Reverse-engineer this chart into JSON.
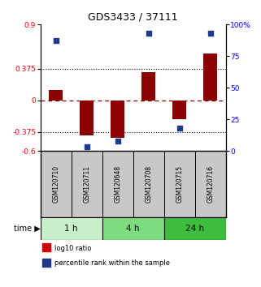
{
  "title": "GDS3433 / 37111",
  "samples": [
    "GSM120710",
    "GSM120711",
    "GSM120648",
    "GSM120708",
    "GSM120715",
    "GSM120716"
  ],
  "log10_ratio": [
    0.12,
    -0.42,
    -0.45,
    0.33,
    -0.22,
    0.55
  ],
  "percentile_rank": [
    87,
    3,
    8,
    93,
    18,
    93
  ],
  "time_groups": [
    {
      "label": "1 h",
      "samples": [
        0,
        1
      ],
      "color": "#c8f0c8"
    },
    {
      "label": "4 h",
      "samples": [
        2,
        3
      ],
      "color": "#7ddc7d"
    },
    {
      "label": "24 h",
      "samples": [
        4,
        5
      ],
      "color": "#3dbc3d"
    }
  ],
  "ylim_left": [
    -0.6,
    0.9
  ],
  "ylim_right": [
    0,
    100
  ],
  "yticks_left": [
    -0.6,
    -0.375,
    0,
    0.375,
    0.9
  ],
  "ytick_labels_left": [
    "-0.6",
    "-0.375",
    "0",
    "0.375",
    "0.9"
  ],
  "yticks_right": [
    0,
    25,
    50,
    75,
    100
  ],
  "ytick_labels_right": [
    "0",
    "25",
    "50",
    "75",
    "100%"
  ],
  "hlines_dotted": [
    0.375,
    -0.375
  ],
  "hline_dashed_val": 0,
  "bar_color": "#8b0000",
  "dot_color": "#1e3a8a",
  "bar_width": 0.45,
  "legend_items": [
    {
      "color": "#cc0000",
      "label": "log10 ratio"
    },
    {
      "color": "#1e3a8a",
      "label": "percentile rank within the sample"
    }
  ],
  "sample_bg": "#c8c8c8",
  "background_color": "#ffffff"
}
